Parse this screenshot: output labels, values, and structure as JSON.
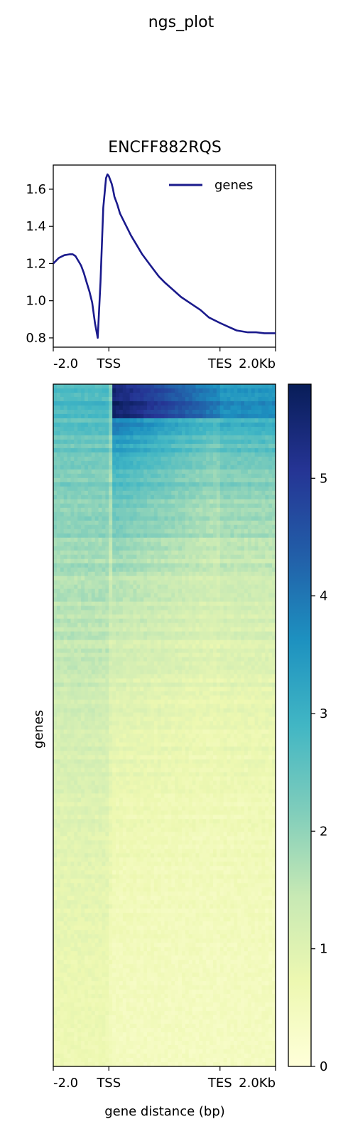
{
  "figure": {
    "suptitle": "ngs_plot"
  },
  "chart_data": [
    {
      "type": "line",
      "title": "ENCFF882RQS",
      "xlabel": "",
      "ylabel": "",
      "xticklabels": [
        "-2.0",
        "TSS",
        "TES",
        "2.0Kb"
      ],
      "xtick_positions": [
        -2.0,
        0.0,
        4.0,
        6.0
      ],
      "xlim": [
        -2.0,
        6.0
      ],
      "ylim": [
        0.75,
        1.73
      ],
      "yticks": [
        0.8,
        1.0,
        1.2,
        1.4,
        1.6
      ],
      "yticklabels": [
        "0.8",
        "1.0",
        "1.2",
        "1.4",
        "1.6"
      ],
      "legend": {
        "position": "top-right",
        "entries": [
          "genes"
        ]
      },
      "series": [
        {
          "name": "genes",
          "color": "#1a1a8c",
          "x": [
            -2.0,
            -1.8,
            -1.6,
            -1.4,
            -1.3,
            -1.2,
            -1.1,
            -1.0,
            -0.9,
            -0.8,
            -0.7,
            -0.6,
            -0.5,
            -0.4,
            -0.3,
            -0.2,
            -0.1,
            -0.05,
            0.0,
            0.05,
            0.1,
            0.15,
            0.2,
            0.3,
            0.4,
            0.6,
            0.8,
            1.0,
            1.2,
            1.5,
            1.8,
            2.0,
            2.3,
            2.6,
            3.0,
            3.3,
            3.6,
            4.0,
            4.3,
            4.6,
            5.0,
            5.3,
            5.6,
            6.0
          ],
          "y": [
            1.2,
            1.23,
            1.245,
            1.25,
            1.25,
            1.24,
            1.215,
            1.19,
            1.15,
            1.1,
            1.05,
            0.99,
            0.88,
            0.8,
            1.1,
            1.5,
            1.66,
            1.68,
            1.67,
            1.65,
            1.63,
            1.6,
            1.56,
            1.52,
            1.47,
            1.41,
            1.35,
            1.3,
            1.25,
            1.19,
            1.13,
            1.1,
            1.06,
            1.02,
            0.98,
            0.95,
            0.91,
            0.88,
            0.86,
            0.84,
            0.83,
            0.83,
            0.825,
            0.825
          ]
        }
      ]
    },
    {
      "type": "heatmap",
      "ylabel": "genes",
      "xlabel": "gene distance (bp)",
      "xticklabels": [
        "-2.0",
        "TSS",
        "TES",
        "2.0Kb"
      ],
      "xtick_positions": [
        -2.0,
        0.0,
        4.0,
        6.0
      ],
      "xlim": [
        -2.0,
        6.0
      ],
      "rows": "genes sorted by mean signal, descending (top = highest)",
      "colormap": "YlGnBu",
      "colorbar": {
        "min": 0,
        "max": 5.8,
        "ticks": [
          0,
          1,
          2,
          3,
          4,
          5
        ],
        "ticklabels": [
          "0",
          "1",
          "2",
          "3",
          "4",
          "5"
        ],
        "stops": [
          "#ffffd9",
          "#edf8b1",
          "#c7e9b4",
          "#7fcdbb",
          "#41b6c4",
          "#1d91c0",
          "#225ea8",
          "#253494",
          "#081d58"
        ]
      },
      "signal_profile": {
        "upstream_top": 3.5,
        "tss_top": 3.3,
        "tss_bottom": 0.3,
        "genebody_top": 5.6,
        "genebody_mid": 2.0,
        "downstream_top": 4.5,
        "bottom_level": 0.4
      }
    }
  ]
}
